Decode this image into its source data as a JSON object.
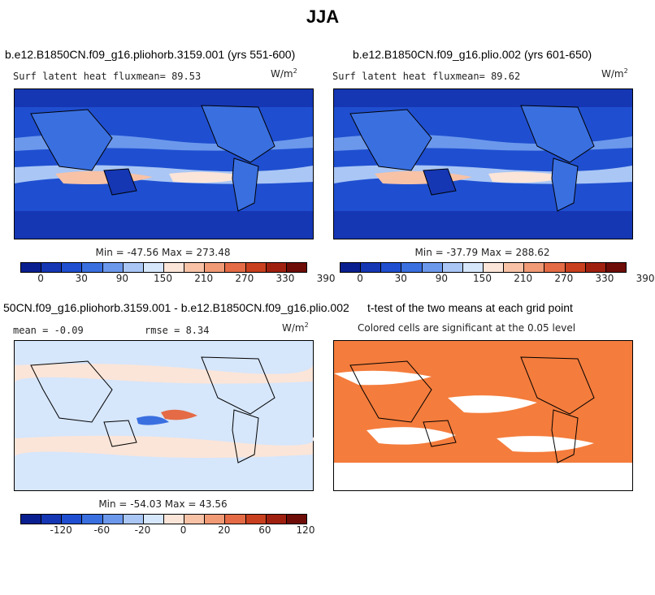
{
  "title": "JJA",
  "palette": [
    "#0a1f8f",
    "#1537b4",
    "#1f4fd0",
    "#3a6fe0",
    "#6c98ec",
    "#a9c6f5",
    "#d6e6fb",
    "#fbe5d8",
    "#f7c2a6",
    "#f09a76",
    "#e46b45",
    "#c8401f",
    "#a02010",
    "#6e0c08"
  ],
  "colors": {
    "ocean_blue": "#2c58d4",
    "land_blue": "#4a7ae4",
    "diff_bg": "#d9e8fb",
    "sig_orange": "#f47c3c"
  },
  "panels": [
    {
      "title": "b.e12.B1850CN.f09_g16.pliohorb.3159.001 (yrs 551-600)",
      "left_label": "Surf latent heat flux",
      "mean_text": "mean=  89.53",
      "units": "W/m",
      "units_sup": "2",
      "minmax": "Min = -47.56 Max = 273.48",
      "ticks": [
        "0",
        "30",
        "90",
        "150",
        "210",
        "270",
        "330",
        "390"
      ]
    },
    {
      "title": "b.e12.B1850CN.f09_g16.plio.002 (yrs 601-650)",
      "left_label": "Surf latent heat flux",
      "mean_text": "mean=  89.62",
      "units": "W/m",
      "units_sup": "2",
      "minmax": "Min = -37.79 Max = 288.62",
      "ticks": [
        "0",
        "30",
        "90",
        "150",
        "210",
        "270",
        "330",
        "390"
      ]
    },
    {
      "title": "50CN.f09_g16.pliohorb.3159.001 - b.e12.B1850CN.f09_g16.plio.002",
      "mean_text": "mean =  -0.09",
      "rmse_text": "rmse =   8.34",
      "units": "W/m",
      "units_sup": "2",
      "minmax": "Min = -54.03 Max = 43.56",
      "ticks": [
        "-120",
        "-60",
        "-20",
        "0",
        "20",
        "60",
        "120"
      ]
    },
    {
      "title": "t-test of the two means at each grid point",
      "subtitle": "Colored cells are significant at the 0.05 level"
    }
  ],
  "chart_data": [
    {
      "type": "heatmap",
      "title": "b.e12.B1850CN.f09_g16.pliohorb.3159.001 (yrs 551-600)",
      "variable": "Surf latent heat flux",
      "units": "W/m2",
      "mean": 89.53,
      "min": -47.56,
      "max": 273.48,
      "colorbar_levels": [
        0,
        30,
        90,
        150,
        210,
        270,
        330,
        390
      ]
    },
    {
      "type": "heatmap",
      "title": "b.e12.B1850CN.f09_g16.plio.002 (yrs 601-650)",
      "variable": "Surf latent heat flux",
      "units": "W/m2",
      "mean": 89.62,
      "min": -37.79,
      "max": 288.62,
      "colorbar_levels": [
        0,
        30,
        90,
        150,
        210,
        270,
        330,
        390
      ]
    },
    {
      "type": "heatmap",
      "title": "50CN.f09_g16.pliohorb.3159.001 - b.e12.B1850CN.f09_g16.plio.002",
      "units": "W/m2",
      "mean": -0.09,
      "rmse": 8.34,
      "min": -54.03,
      "max": 43.56,
      "colorbar_levels": [
        -120,
        -60,
        -20,
        0,
        20,
        60,
        120
      ]
    },
    {
      "type": "heatmap",
      "title": "t-test of the two means at each grid point",
      "subtitle": "Colored cells are significant at the 0.05 level",
      "significance_level": 0.05
    }
  ]
}
